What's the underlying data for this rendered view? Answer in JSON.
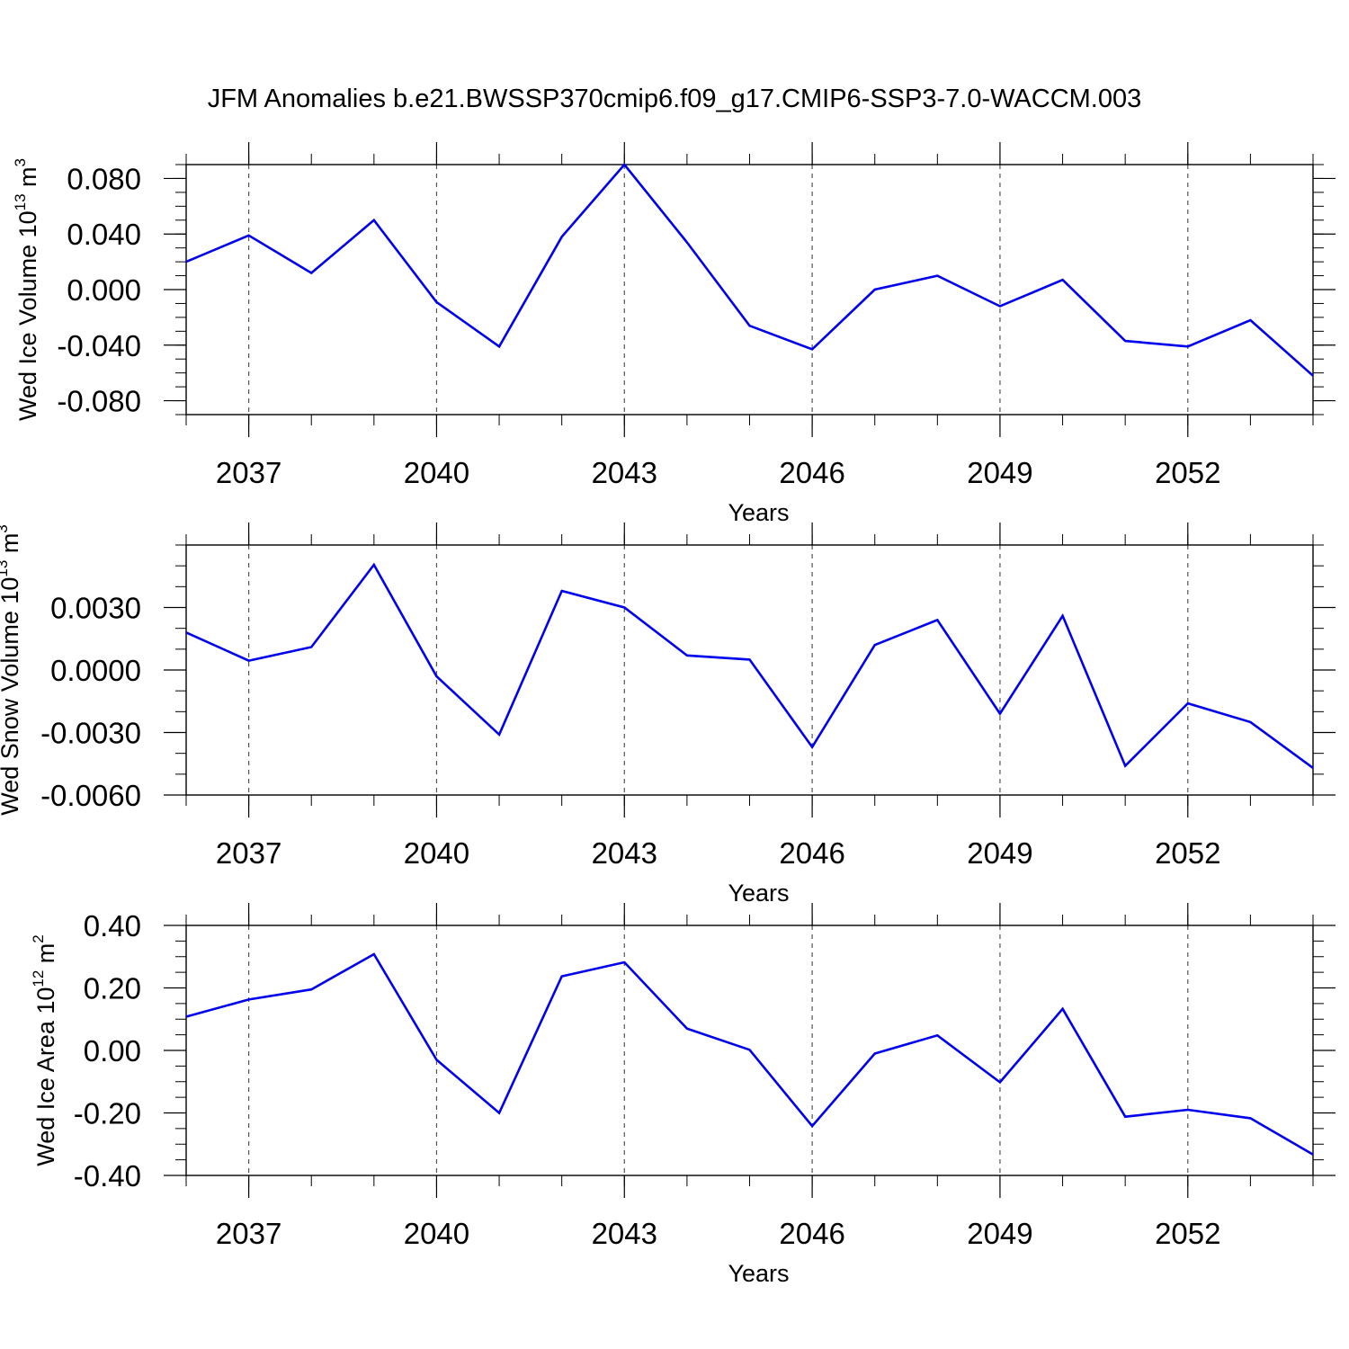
{
  "title": "JFM Anomalies b.e21.BWSSP370cmip6.f09_g17.CMIP6-SSP3-7.0-WACCM.003",
  "colors": {
    "line": "#0000ee",
    "axis": "#000000",
    "grid": "#555555"
  },
  "chart_data": [
    {
      "type": "line",
      "xlabel": "Years",
      "ylabel": {
        "text": "Wed Ice Volume 10",
        "exp": "13",
        "unit": " m",
        "unit_exp": "3"
      },
      "xlim": [
        2036,
        2054
      ],
      "ylim": [
        -0.09,
        0.09
      ],
      "x_ticks": [
        2037,
        2040,
        2043,
        2046,
        2049,
        2052
      ],
      "x_tick_labels": [
        "2037",
        "2040",
        "2043",
        "2046",
        "2049",
        "2052"
      ],
      "y_ticks": [
        -0.08,
        -0.04,
        0.0,
        0.04,
        0.08
      ],
      "y_tick_labels": [
        "-0.080",
        "-0.040",
        "0.000",
        "0.040",
        "0.080"
      ],
      "y_minor_step": 0.01,
      "grid": "vertical dashed at labeled years",
      "series": [
        {
          "x": [
            2036,
            2037,
            2038,
            2039,
            2040,
            2041,
            2042,
            2043,
            2044,
            2045,
            2046,
            2047,
            2048,
            2049,
            2050,
            2051,
            2052,
            2053,
            2054
          ],
          "values": [
            0.02,
            0.039,
            0.012,
            0.05,
            -0.009,
            -0.041,
            0.038,
            0.09,
            0.034,
            -0.026,
            -0.043,
            0.0,
            0.01,
            -0.012,
            0.007,
            -0.037,
            -0.041,
            -0.022,
            -0.062
          ]
        }
      ]
    },
    {
      "type": "line",
      "xlabel": "Years",
      "ylabel": {
        "text": "Wed Snow Volume 10",
        "exp": "13",
        "unit": " m",
        "unit_exp": "3"
      },
      "xlim": [
        2036,
        2054
      ],
      "ylim": [
        -0.006,
        0.006
      ],
      "x_ticks": [
        2037,
        2040,
        2043,
        2046,
        2049,
        2052
      ],
      "x_tick_labels": [
        "2037",
        "2040",
        "2043",
        "2046",
        "2049",
        "2052"
      ],
      "y_ticks": [
        -0.006,
        -0.003,
        0.0,
        0.003
      ],
      "y_tick_labels": [
        "-0.0060",
        "-0.0030",
        "0.0000",
        "0.0030"
      ],
      "y_minor_step": 0.001,
      "grid": "vertical dashed at labeled years",
      "series": [
        {
          "x": [
            2036,
            2037,
            2038,
            2039,
            2040,
            2041,
            2042,
            2043,
            2044,
            2045,
            2046,
            2047,
            2048,
            2049,
            2050,
            2051,
            2052,
            2053,
            2054
          ],
          "values": [
            0.0018,
            0.00045,
            0.0011,
            0.00505,
            -0.0003,
            -0.0031,
            0.0038,
            0.003,
            0.0007,
            0.0005,
            -0.0037,
            0.0012,
            0.0024,
            -0.0021,
            0.0026,
            -0.0046,
            -0.0016,
            -0.0025,
            -0.0047
          ]
        }
      ]
    },
    {
      "type": "line",
      "xlabel": "Years",
      "ylabel": {
        "text": "Wed Ice Area 10",
        "exp": "12",
        "unit": " m",
        "unit_exp": "2"
      },
      "xlim": [
        2036,
        2054
      ],
      "ylim": [
        -0.4,
        0.4
      ],
      "x_ticks": [
        2037,
        2040,
        2043,
        2046,
        2049,
        2052
      ],
      "x_tick_labels": [
        "2037",
        "2040",
        "2043",
        "2046",
        "2049",
        "2052"
      ],
      "y_ticks": [
        -0.4,
        -0.2,
        0.0,
        0.2,
        0.4
      ],
      "y_tick_labels": [
        "-0.40",
        "-0.20",
        "0.00",
        "0.20",
        "0.40"
      ],
      "y_minor_step": 0.05,
      "grid": "vertical dashed at labeled years",
      "series": [
        {
          "x": [
            2036,
            2037,
            2038,
            2039,
            2040,
            2041,
            2042,
            2043,
            2044,
            2045,
            2046,
            2047,
            2048,
            2049,
            2050,
            2051,
            2052,
            2053,
            2054
          ],
          "values": [
            0.108,
            0.163,
            0.195,
            0.308,
            -0.03,
            -0.2,
            0.237,
            0.282,
            0.07,
            0.002,
            -0.242,
            -0.01,
            0.048,
            -0.102,
            0.133,
            -0.212,
            -0.19,
            -0.217,
            -0.333
          ]
        }
      ]
    }
  ]
}
